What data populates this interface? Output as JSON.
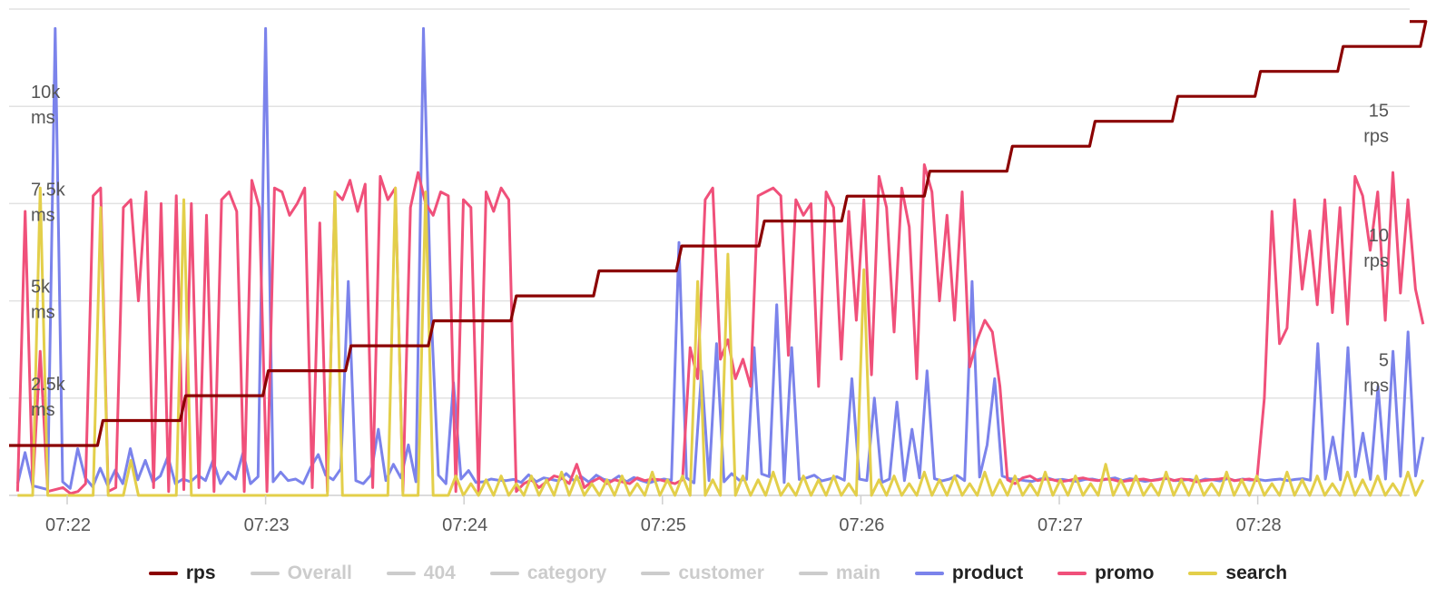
{
  "chart_data": {
    "type": "line",
    "x_ticks": [
      "07:22",
      "07:23",
      "07:24",
      "07:25",
      "07:26",
      "07:27",
      "07:28"
    ],
    "y_left": {
      "ticks": [
        2500,
        5000,
        7500,
        10000
      ],
      "tick_labels": [
        [
          "2.5k",
          "ms"
        ],
        [
          "5k",
          "ms"
        ],
        [
          "7.5k",
          "ms"
        ],
        [
          "10k",
          "ms"
        ]
      ],
      "range": [
        0,
        12500
      ]
    },
    "y_right": {
      "ticks": [
        5,
        10,
        15
      ],
      "tick_labels": [
        [
          "5",
          "rps"
        ],
        [
          "10",
          "rps"
        ],
        [
          "15",
          "rps"
        ]
      ],
      "range": [
        0,
        19.5
      ]
    },
    "grid": true,
    "legend_position": "bottom",
    "colors": {
      "rps": "#8b0000",
      "Overall": "#cccccc",
      "404": "#cccccc",
      "category": "#cccccc",
      "customer": "#cccccc",
      "main": "#cccccc",
      "product": "#7b83eb",
      "promo": "#f0507a",
      "search": "#e3cf4a"
    },
    "legend": [
      {
        "name": "rps",
        "visible": true
      },
      {
        "name": "Overall",
        "visible": false
      },
      {
        "name": "404",
        "visible": false
      },
      {
        "name": "category",
        "visible": false
      },
      {
        "name": "customer",
        "visible": false
      },
      {
        "name": "main",
        "visible": false
      },
      {
        "name": "product",
        "visible": true
      },
      {
        "name": "promo",
        "visible": true
      },
      {
        "name": "search",
        "visible": true
      }
    ],
    "rps_steps": [
      {
        "time": "07:21:45",
        "rps": 2
      },
      {
        "time": "07:22:10",
        "rps": 3
      },
      {
        "time": "07:22:35",
        "rps": 4
      },
      {
        "time": "07:23:00",
        "rps": 5
      },
      {
        "time": "07:23:25",
        "rps": 6
      },
      {
        "time": "07:23:50",
        "rps": 7
      },
      {
        "time": "07:24:15",
        "rps": 8
      },
      {
        "time": "07:24:40",
        "rps": 9
      },
      {
        "time": "07:25:05",
        "rps": 10
      },
      {
        "time": "07:25:30",
        "rps": 11
      },
      {
        "time": "07:25:55",
        "rps": 12
      },
      {
        "time": "07:26:20",
        "rps": 13
      },
      {
        "time": "07:26:45",
        "rps": 14
      },
      {
        "time": "07:27:10",
        "rps": 15
      },
      {
        "time": "07:27:35",
        "rps": 16
      },
      {
        "time": "07:28:00",
        "rps": 17
      },
      {
        "time": "07:28:25",
        "rps": 18
      },
      {
        "time": "07:28:50",
        "rps": 19
      }
    ],
    "series": [
      {
        "name": "product",
        "x_start": "07:21:45",
        "x_end": "07:28:50",
        "values_ms": [
          300,
          1100,
          250,
          200,
          150,
          12000,
          350,
          180,
          1200,
          450,
          220,
          700,
          250,
          650,
          300,
          1200,
          400,
          900,
          350,
          500,
          1000,
          300,
          420,
          350,
          520,
          380,
          900,
          300,
          600,
          420,
          1100,
          300,
          480,
          12000,
          350,
          600,
          380,
          420,
          300,
          720,
          1050,
          520,
          400,
          680,
          5500,
          380,
          300,
          520,
          1700,
          380,
          800,
          450,
          1300,
          350,
          12000,
          4800,
          520,
          300,
          2900,
          420,
          640,
          330,
          350,
          420,
          390,
          380,
          410,
          330,
          530,
          350,
          450,
          410,
          370,
          560,
          380,
          480,
          340,
          520,
          410,
          370,
          500,
          350,
          460,
          380,
          320,
          380,
          420,
          390,
          6500,
          450,
          320,
          3200,
          380,
          3900,
          350,
          560,
          390,
          410,
          3800,
          550,
          480,
          4900,
          330,
          3800,
          410,
          450,
          520,
          370,
          420,
          480,
          390,
          3000,
          420,
          380,
          2500,
          330,
          420,
          2400,
          380,
          1700,
          450,
          3200,
          430,
          370,
          420,
          510,
          380,
          5500,
          470,
          1300,
          3000,
          500,
          430,
          410,
          380,
          360,
          420,
          450,
          390,
          410,
          380,
          360,
          410,
          420,
          380,
          420,
          450,
          380,
          430,
          400,
          360,
          390,
          420,
          430,
          380,
          390,
          410,
          360,
          420,
          400,
          370,
          430,
          380,
          420,
          390,
          410,
          380,
          400,
          420,
          380,
          410,
          430,
          390,
          3900,
          420,
          1500,
          400,
          3800,
          480,
          1600,
          410,
          2800,
          420,
          3700,
          490,
          4200,
          500,
          1500
        ]
      },
      {
        "name": "promo",
        "x_start": "07:21:45",
        "x_end": "07:28:50",
        "values_ms": [
          100,
          7300,
          200,
          3700,
          100,
          150,
          200,
          50,
          100,
          300,
          7700,
          7900,
          100,
          200,
          7400,
          7600,
          5000,
          7800,
          200,
          7500,
          100,
          7700,
          150,
          7500,
          200,
          7200,
          100,
          7600,
          7800,
          7300,
          100,
          8100,
          7400,
          100,
          7900,
          7800,
          7200,
          7500,
          7900,
          200,
          7000,
          100,
          7800,
          7600,
          8100,
          7300,
          8000,
          200,
          8200,
          7600,
          7900,
          100,
          7400,
          8300,
          7500,
          7200,
          7800,
          7700,
          100,
          7600,
          7400,
          100,
          7800,
          7300,
          7900,
          7600,
          100,
          300,
          400,
          200,
          350,
          500,
          450,
          300,
          800,
          200,
          350,
          450,
          300,
          400,
          350,
          300,
          450,
          380,
          420,
          400,
          350,
          300,
          400,
          3800,
          3000,
          7600,
          7900,
          3500,
          4000,
          3000,
          3500,
          2800,
          7700,
          7800,
          7900,
          7700,
          3600,
          7600,
          7200,
          7500,
          2800,
          7800,
          7400,
          3500,
          7300,
          4500,
          7600,
          3100,
          8200,
          7400,
          4200,
          7900,
          6900,
          3000,
          8500,
          7800,
          5000,
          7200,
          4500,
          7800,
          3300,
          4000,
          4500,
          4200,
          2800,
          400,
          300,
          450,
          500,
          380,
          420,
          400,
          350,
          380,
          420,
          450,
          400,
          380,
          420,
          400,
          350,
          380,
          400,
          420,
          380,
          400,
          450,
          380,
          420,
          400,
          350,
          380,
          400,
          420,
          450,
          380,
          400,
          420,
          380,
          2500,
          7300,
          3900,
          4300,
          7600,
          5300,
          6800,
          4900,
          7600,
          4700,
          7400,
          4400,
          8200,
          7700,
          6300,
          7800,
          4500,
          8300,
          5200,
          7600,
          5300,
          4400
        ]
      },
      {
        "name": "search",
        "x_start": "07:21:45",
        "x_end": "07:28:50",
        "values_ms": [
          0,
          0,
          0,
          7900,
          0,
          0,
          0,
          0,
          0,
          0,
          0,
          7400,
          0,
          0,
          0,
          900,
          0,
          0,
          0,
          0,
          0,
          0,
          7600,
          0,
          0,
          0,
          0,
          0,
          0,
          0,
          0,
          0,
          0,
          0,
          0,
          0,
          0,
          0,
          0,
          0,
          0,
          0,
          7800,
          0,
          0,
          0,
          0,
          0,
          0,
          0,
          7900,
          0,
          0,
          0,
          7800,
          0,
          0,
          0,
          500,
          0,
          300,
          0,
          400,
          0,
          500,
          0,
          300,
          0,
          500,
          0,
          400,
          0,
          600,
          0,
          500,
          0,
          300,
          0,
          400,
          0,
          500,
          0,
          300,
          0,
          600,
          0,
          400,
          0,
          500,
          0,
          5500,
          0,
          400,
          0,
          6200,
          0,
          500,
          0,
          400,
          0,
          600,
          0,
          300,
          0,
          500,
          0,
          400,
          0,
          500,
          0,
          300,
          0,
          5800,
          0,
          400,
          0,
          500,
          0,
          300,
          0,
          600,
          0,
          400,
          0,
          500,
          0,
          300,
          0,
          600,
          0,
          400,
          0,
          500,
          0,
          300,
          0,
          600,
          0,
          400,
          0,
          500,
          0,
          300,
          0,
          800,
          0,
          400,
          0,
          500,
          0,
          300,
          0,
          600,
          0,
          400,
          0,
          500,
          0,
          300,
          0,
          600,
          0,
          400,
          0,
          500,
          0,
          300,
          0,
          600,
          0,
          400,
          0,
          500,
          0,
          300,
          0,
          600,
          0,
          400,
          0,
          500,
          0,
          300,
          0,
          600,
          0,
          400
        ]
      }
    ]
  }
}
